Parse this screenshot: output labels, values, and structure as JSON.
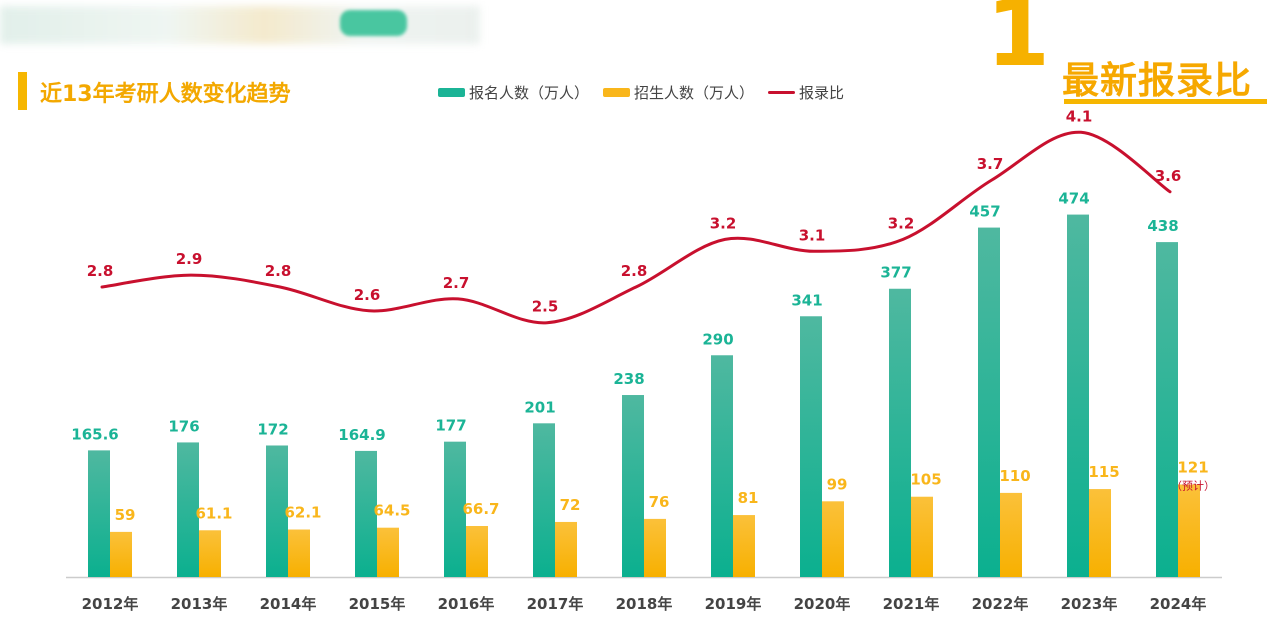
{
  "page": {
    "title": "近13年考研人数变化趋势",
    "corner_number": "1",
    "corner_title": "最新报录比"
  },
  "colors": {
    "applicants": "#1bb496",
    "admitted": "#f9b61b",
    "ratio": "#c8102e",
    "accent": "#f6b100"
  },
  "chart_data": {
    "type": "bar",
    "categories": [
      "2012年",
      "2013年",
      "2014年",
      "2015年",
      "2016年",
      "2017年",
      "2018年",
      "2019年",
      "2020年",
      "2021年",
      "2022年",
      "2023年",
      "2024年"
    ],
    "series": [
      {
        "name": "报名人数（万人）",
        "type": "bar",
        "values": [
          165.6,
          176,
          172,
          164.9,
          177,
          201,
          238,
          290,
          341,
          377,
          457,
          474,
          438
        ],
        "labels": [
          "165.6",
          "176",
          "172",
          "164.9",
          "177",
          "201",
          "238",
          "290",
          "341",
          "377",
          "457",
          "474",
          "438"
        ]
      },
      {
        "name": "招生人数（万人）",
        "type": "bar",
        "values": [
          59,
          61.1,
          62.1,
          64.5,
          66.7,
          72,
          76,
          81,
          99,
          105,
          110,
          115,
          121
        ],
        "labels": [
          "59",
          "61.1",
          "62.1",
          "64.5",
          "66.7",
          "72",
          "76",
          "81",
          "99",
          "105",
          "110",
          "115",
          "121"
        ]
      },
      {
        "name": "报录比",
        "type": "line",
        "values": [
          2.8,
          2.9,
          2.8,
          2.6,
          2.7,
          2.5,
          2.8,
          3.2,
          3.1,
          3.2,
          3.7,
          4.1,
          3.6
        ],
        "labels": [
          "2.8",
          "2.9",
          "2.8",
          "2.6",
          "2.7",
          "2.5",
          "2.8",
          "3.2",
          "3.1",
          "3.2",
          "3.7",
          "4.1",
          "3.6"
        ]
      }
    ],
    "annotations": [
      {
        "category": "2024年",
        "series": "招生人数（万人）",
        "text": "（预计）"
      }
    ],
    "legend_position": "top",
    "grid": false
  }
}
